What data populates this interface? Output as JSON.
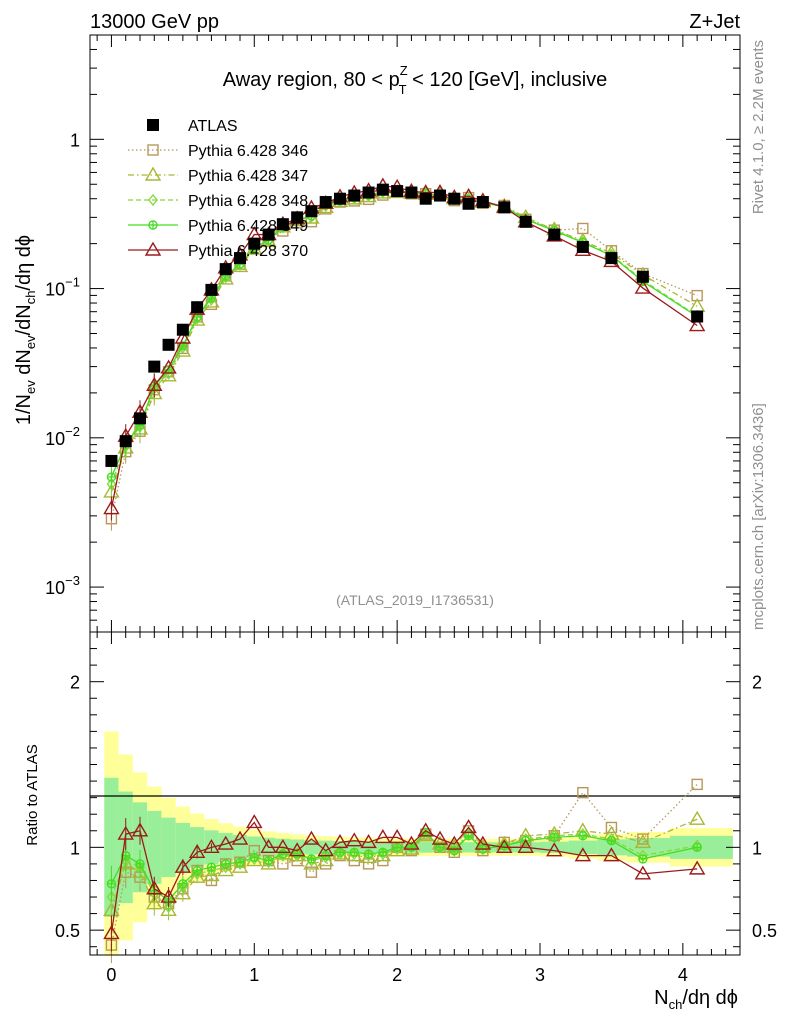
{
  "header": {
    "left": "13000 GeV pp",
    "right": "Z+Jet"
  },
  "side_text": {
    "rivet": "Rivet 4.1.0, ≥ 2.2M events",
    "mcplots": "mcplots.cern.ch [arXiv:1306.3436]"
  },
  "chart_data": {
    "type": "scatter",
    "title": {
      "prefix": "Away region, 80 < p",
      "sup": "Z",
      "sub": "T",
      "suffix": " < 120 [GeV], inclusive"
    },
    "watermark": "(ATLAS_2019_I1736531)",
    "ylabel": {
      "p1": "1/N",
      "s1": "ev",
      "p2": " dN",
      "s2": "ev",
      "p3": "/dN",
      "s3": "ch",
      "p4": "/dη dϕ"
    },
    "xlabel": {
      "p1": "N",
      "s1": "ch",
      "p2": "/dη dϕ"
    },
    "ratio_ylabel": "Ratio to ATLAS",
    "xlim": [
      -0.15,
      4.4
    ],
    "ylim": [
      0.0005,
      5.0
    ],
    "ratio_ylim": [
      0.35,
      2.3
    ],
    "x_ticks": [
      "0",
      "1",
      "2",
      "3",
      "4"
    ],
    "y_ticks": [
      {
        "base": "10",
        "exp": "−3",
        "value": 0.001
      },
      {
        "base": "10",
        "exp": "−2",
        "value": 0.01
      },
      {
        "base": "10",
        "exp": "−1",
        "value": 0.1
      },
      {
        "base": "1",
        "exp": "",
        "value": 1
      }
    ],
    "ratio_ticks": [
      "0.5",
      "1",
      "2"
    ],
    "x": [
      0.0,
      0.1,
      0.2,
      0.3,
      0.4,
      0.5,
      0.6,
      0.7,
      0.8,
      0.9,
      1.0,
      1.1,
      1.2,
      1.3,
      1.4,
      1.5,
      1.6,
      1.7,
      1.8,
      1.9,
      2.0,
      2.1,
      2.2,
      2.3,
      2.4,
      2.5,
      2.6,
      2.75,
      2.9,
      3.1,
      3.3,
      3.5,
      3.72,
      4.1
    ],
    "atlas": [
      0.007,
      0.0095,
      0.0135,
      0.03,
      0.042,
      0.053,
      0.075,
      0.098,
      0.135,
      0.16,
      0.2,
      0.23,
      0.27,
      0.3,
      0.33,
      0.38,
      0.4,
      0.42,
      0.44,
      0.46,
      0.45,
      0.44,
      0.4,
      0.42,
      0.4,
      0.37,
      0.38,
      0.35,
      0.28,
      0.23,
      0.19,
      0.16,
      0.12,
      0.065
    ],
    "series": [
      {
        "name": "ATLAS",
        "marker": "square-filled",
        "color": "#000000",
        "dash": "",
        "ratio": []
      },
      {
        "name": "Pythia 6.428 346",
        "marker": "square-open",
        "color": "#b8975b",
        "dash": "1.5,2.5",
        "ratio": [
          0.41,
          0.85,
          0.82,
          0.7,
          0.66,
          0.75,
          0.86,
          0.8,
          0.9,
          0.91,
          0.98,
          0.92,
          0.9,
          0.92,
          0.85,
          0.9,
          0.95,
          0.92,
          0.9,
          0.92,
          1.0,
          0.98,
          1.08,
          1.0,
          0.97,
          1.1,
          0.98,
          1.03,
          1.04,
          1.07,
          1.33,
          1.12,
          1.05,
          1.38
        ]
      },
      {
        "name": "Pythia 6.428 347",
        "marker": "triangle-open",
        "color": "#a8b833",
        "dash": "6,3,1.5,3",
        "ratio": [
          0.62,
          0.9,
          0.85,
          0.66,
          0.62,
          0.72,
          0.82,
          0.83,
          0.86,
          0.88,
          0.92,
          0.9,
          0.96,
          0.95,
          0.9,
          0.92,
          0.96,
          0.95,
          0.94,
          0.95,
          0.98,
          0.99,
          1.07,
          1.02,
          1.0,
          1.12,
          1.0,
          1.02,
          1.07,
          1.08,
          1.1,
          1.08,
          1.03,
          1.17
        ]
      },
      {
        "name": "Pythia 6.428 348",
        "marker": "diamond-open",
        "color": "#88d840",
        "dash": "5,3",
        "ratio": [
          0.7,
          0.92,
          0.88,
          0.72,
          0.64,
          0.76,
          0.84,
          0.86,
          0.88,
          0.9,
          0.93,
          0.91,
          0.95,
          0.95,
          0.92,
          0.94,
          0.96,
          0.96,
          0.95,
          0.96,
          0.99,
          1.0,
          1.08,
          1.0,
          0.98,
          1.08,
          0.99,
          1.01,
          1.05,
          1.07,
          1.08,
          1.05,
          0.95,
          1.01
        ]
      },
      {
        "name": "Pythia 6.428 349",
        "marker": "circle-cross",
        "color": "#44dd22",
        "dash": "",
        "ratio": [
          0.78,
          0.95,
          0.9,
          0.74,
          0.68,
          0.78,
          0.86,
          0.88,
          0.9,
          0.91,
          0.94,
          0.92,
          0.96,
          0.96,
          0.93,
          0.95,
          0.97,
          0.97,
          0.96,
          0.97,
          1.0,
          1.0,
          1.09,
          1.0,
          0.98,
          1.07,
          0.99,
          1.01,
          1.04,
          1.06,
          1.07,
          1.04,
          0.93,
          1.0
        ]
      },
      {
        "name": "Pythia 6.428 370",
        "marker": "triangle-open",
        "color": "#9b1b1b",
        "dash": "",
        "ratio": [
          0.48,
          1.08,
          1.1,
          0.75,
          0.7,
          0.88,
          0.97,
          1.0,
          1.02,
          1.05,
          1.15,
          1.0,
          1.0,
          0.98,
          1.05,
          0.98,
          1.03,
          1.04,
          1.03,
          1.06,
          1.06,
          1.02,
          1.1,
          1.05,
          1.02,
          1.12,
          1.02,
          1.0,
          1.0,
          0.98,
          0.95,
          0.95,
          0.84,
          0.87
        ]
      }
    ]
  }
}
